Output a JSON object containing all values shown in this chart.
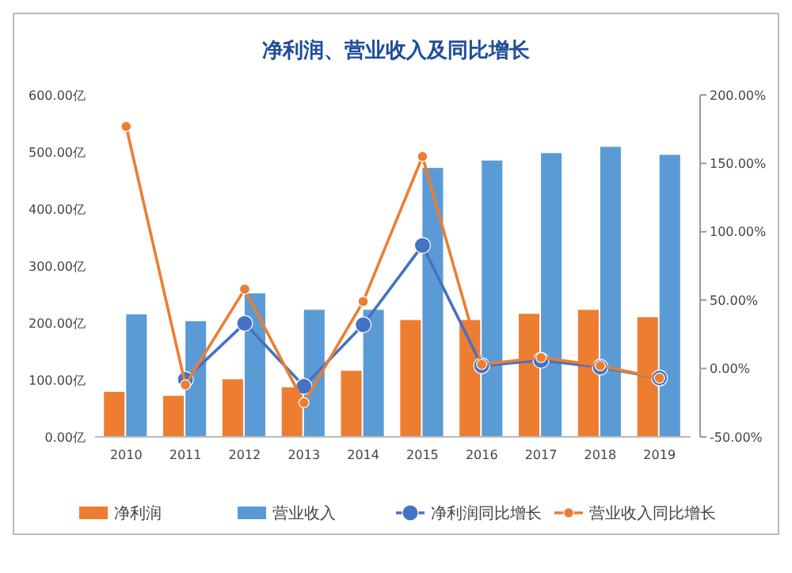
{
  "chart_data": {
    "type": "bar",
    "title": "净利润、营业收入及同比增长",
    "categories": [
      "2010",
      "2011",
      "2012",
      "2013",
      "2014",
      "2015",
      "2016",
      "2017",
      "2018",
      "2019"
    ],
    "series": [
      {
        "name": "净利润",
        "color": "#ed7d31",
        "values": [
          79,
          72,
          101,
          87,
          116,
          205,
          205,
          216,
          223,
          210
        ]
      },
      {
        "name": "营业收入",
        "color": "#5b9bd5",
        "values": [
          215,
          203,
          252,
          223,
          223,
          472,
          485,
          498,
          509,
          495
        ]
      },
      {
        "name": "净利润同比增长",
        "type": "line",
        "axis": "y2",
        "color": "#4472c4",
        "marker": "circle",
        "values": [
          null,
          -8,
          33,
          -13,
          32,
          90,
          2,
          6,
          1,
          -7
        ]
      },
      {
        "name": "营业收入同比增长",
        "type": "line",
        "axis": "y2",
        "color": "#ed7d31",
        "marker": "circle",
        "values": [
          177,
          -12,
          58,
          -25,
          49,
          155,
          3,
          8,
          2,
          -7
        ]
      }
    ],
    "ylim": [
      0,
      600
    ],
    "yticks": [
      {
        "value": 0,
        "label": "0.00亿"
      },
      {
        "value": 100,
        "label": "100.00亿"
      },
      {
        "value": 200,
        "label": "200.00亿"
      },
      {
        "value": 300,
        "label": "300.00亿"
      },
      {
        "value": 400,
        "label": "400.00亿"
      },
      {
        "value": 500,
        "label": "500.00亿"
      },
      {
        "value": 600,
        "label": "600.00亿"
      }
    ],
    "y2lim": [
      -50,
      200
    ],
    "y2ticks": [
      {
        "value": -50,
        "label": "-50.00%"
      },
      {
        "value": 0,
        "label": "0.00%"
      },
      {
        "value": 50,
        "label": "50.00%"
      },
      {
        "value": 100,
        "label": "100.00%"
      },
      {
        "value": 150,
        "label": "150.00%"
      },
      {
        "value": 200,
        "label": "200.00%"
      }
    ],
    "legend": "bottom"
  }
}
